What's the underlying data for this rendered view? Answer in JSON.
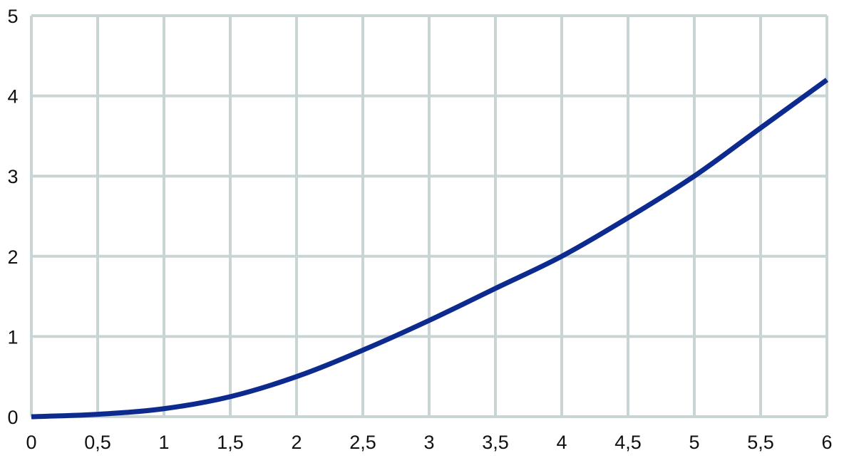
{
  "chart_data": {
    "type": "line",
    "title": "",
    "xlabel": "",
    "ylabel": "",
    "xlim": [
      0,
      6
    ],
    "ylim": [
      0,
      5
    ],
    "grid": true,
    "legend": "none",
    "x_ticks": [
      "0",
      "0,5",
      "1",
      "1,5",
      "2",
      "2,5",
      "3",
      "3,5",
      "4",
      "4,5",
      "5",
      "5,5",
      "6"
    ],
    "y_ticks": [
      "0",
      "1",
      "2",
      "3",
      "4",
      "5"
    ],
    "colors": {
      "line": "#0d2a8e",
      "grid": "#c9d5d5"
    },
    "series": [
      {
        "x": [
          0,
          0.5,
          1,
          1.5,
          2,
          2.5,
          3,
          3.5,
          4,
          4.5,
          5,
          5.5,
          6
        ],
        "y": [
          0,
          0.03,
          0.1,
          0.25,
          0.5,
          0.83,
          1.2,
          1.6,
          2.0,
          2.48,
          3.0,
          3.6,
          4.2
        ]
      }
    ]
  }
}
